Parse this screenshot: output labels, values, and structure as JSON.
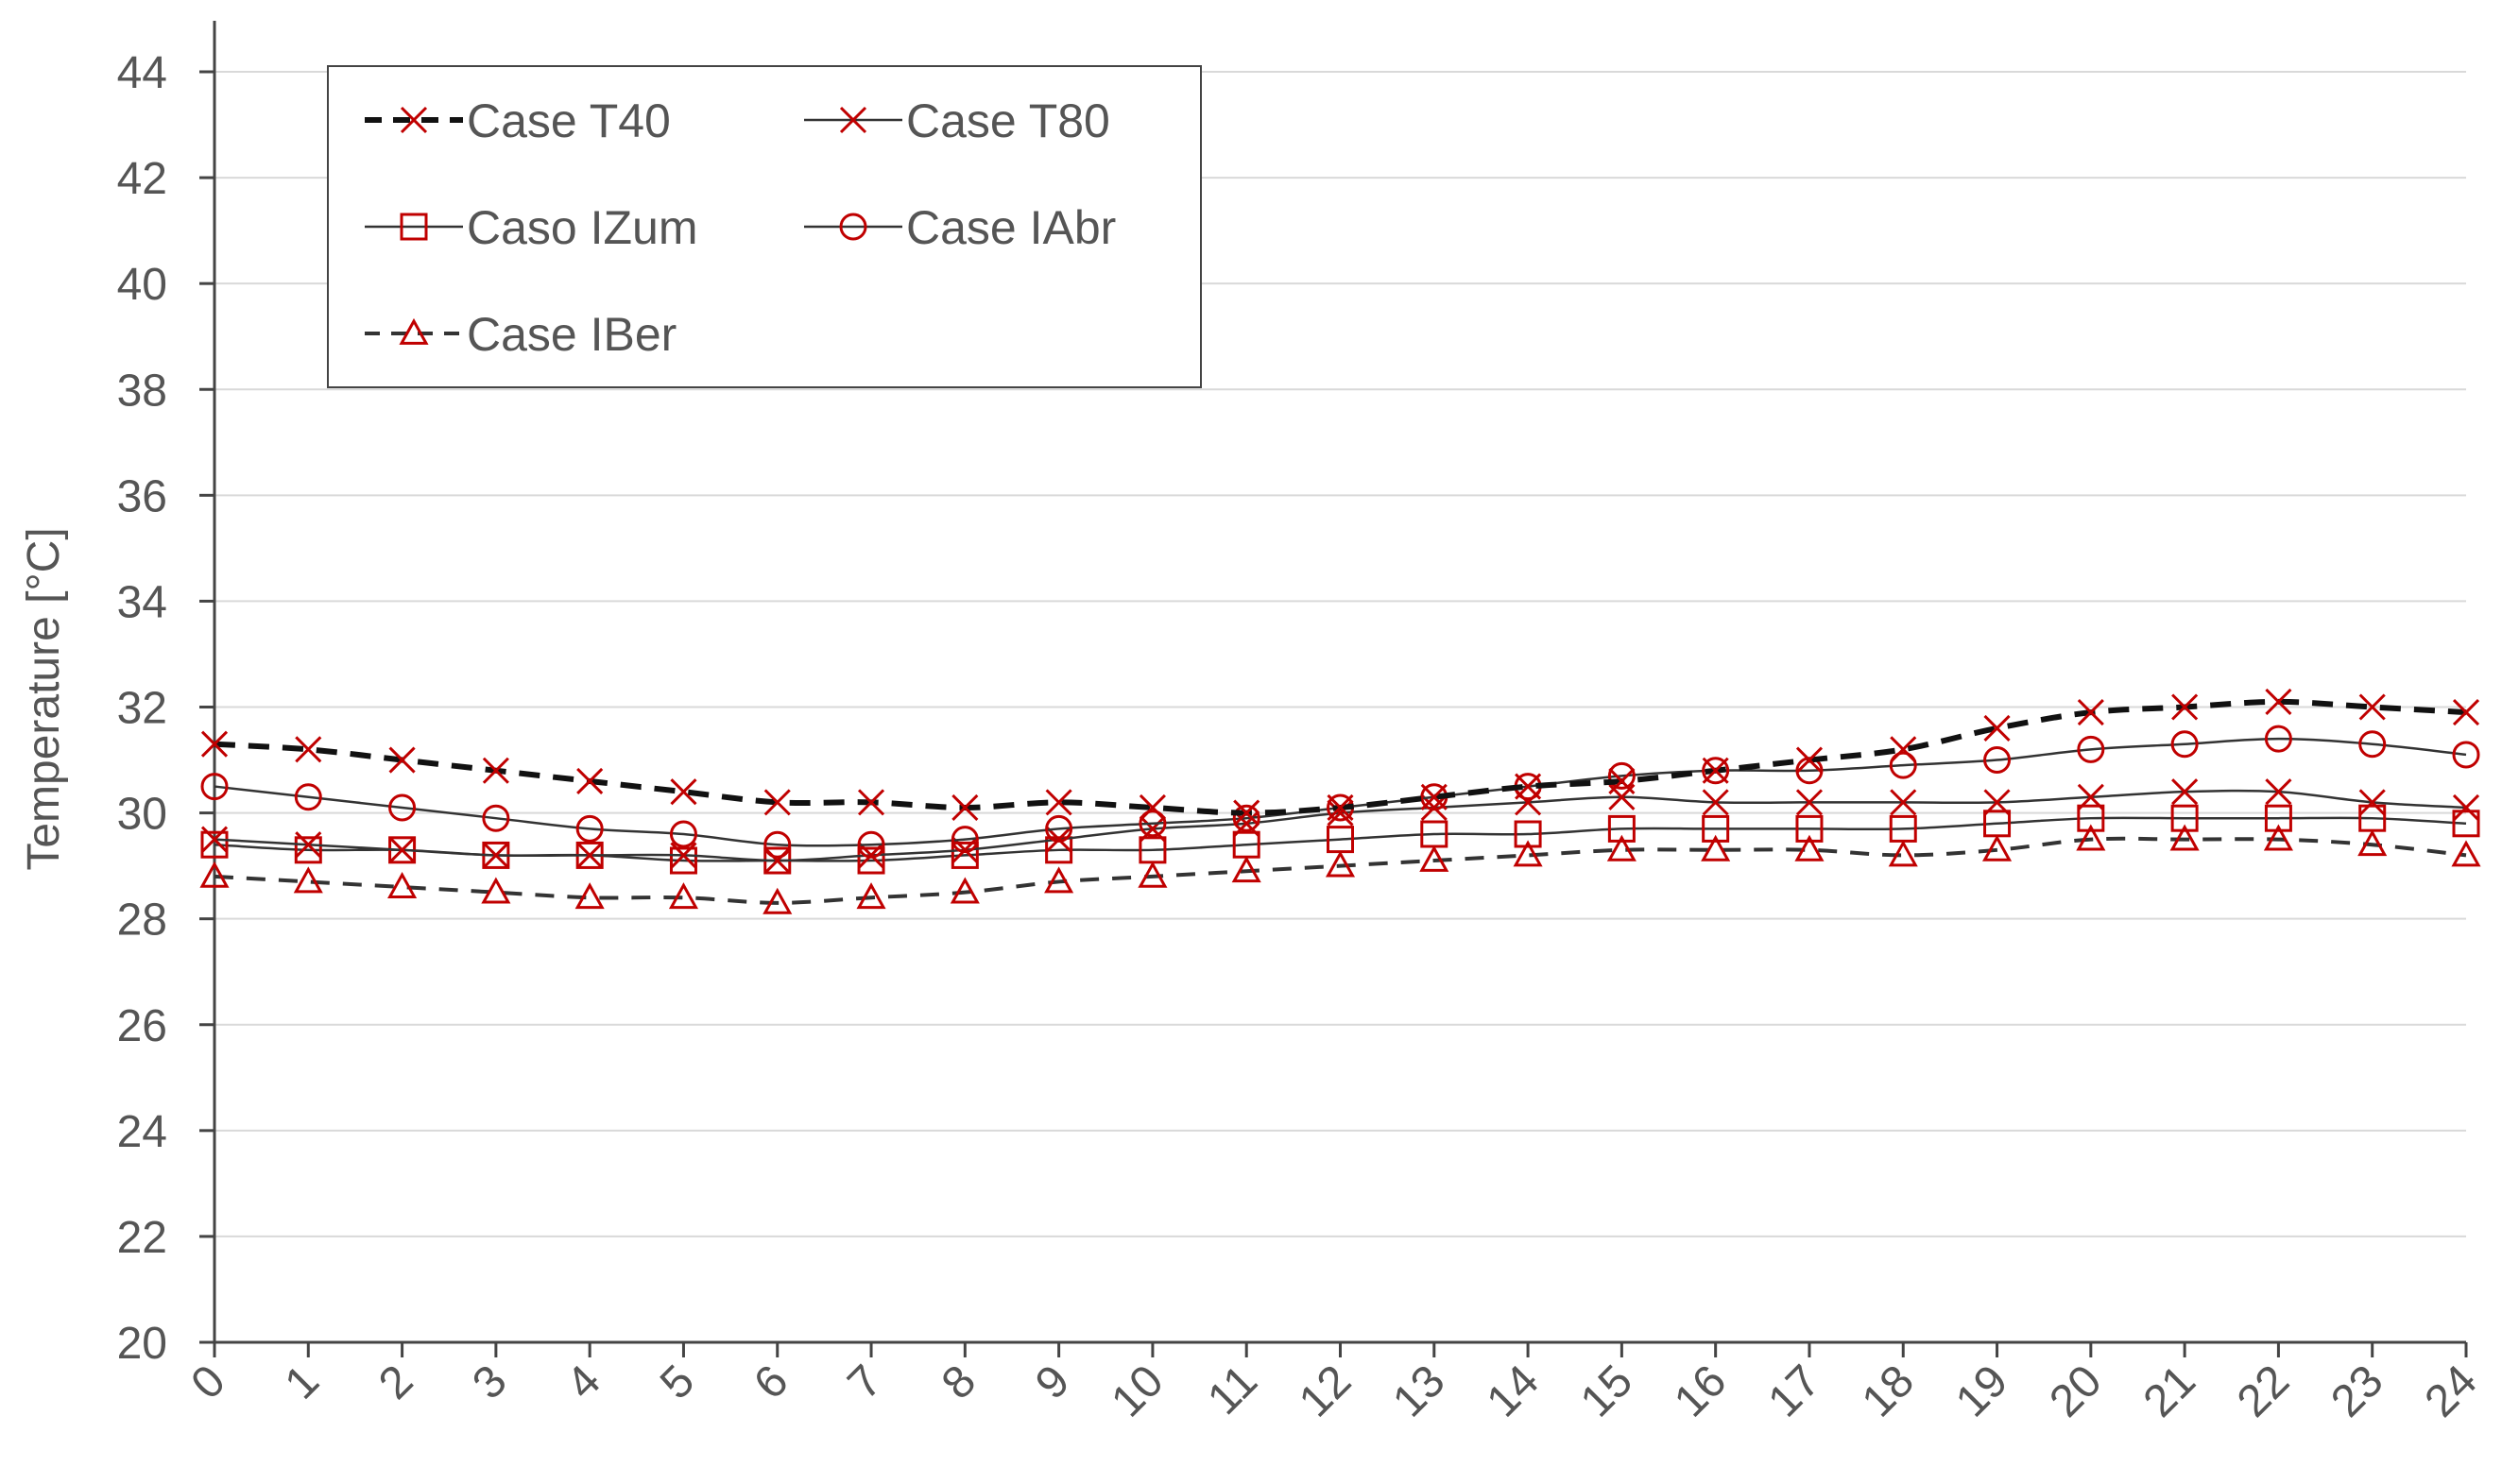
{
  "chart_data": {
    "type": "line",
    "title": "",
    "xlabel": "",
    "ylabel": "Temperature [°C]",
    "ylim": [
      20,
      44
    ],
    "ytick_step": 2,
    "x": [
      0,
      1,
      2,
      3,
      4,
      5,
      6,
      7,
      8,
      9,
      10,
      11,
      12,
      13,
      14,
      15,
      16,
      17,
      18,
      19,
      20,
      21,
      22,
      23,
      24
    ],
    "grid": "horizontal",
    "legend_position": "top-left",
    "colors": {
      "marker": "#c00000",
      "line_black": "#111111",
      "line_dark": "#333333",
      "grid": "#d9d9d9",
      "axis": "#444444"
    },
    "series": [
      {
        "name": "Case T40",
        "marker": "x-cross",
        "line": "dashed-bold",
        "values": [
          31.3,
          31.2,
          31.0,
          30.8,
          30.6,
          30.4,
          30.2,
          30.2,
          30.1,
          30.2,
          30.1,
          30.0,
          30.1,
          30.3,
          30.5,
          30.6,
          30.8,
          31.0,
          31.2,
          31.6,
          31.9,
          32.0,
          32.1,
          32.0,
          31.9
        ]
      },
      {
        "name": "Case T80",
        "marker": "x-cross",
        "line": "solid",
        "values": [
          29.5,
          29.4,
          29.3,
          29.2,
          29.2,
          29.2,
          29.1,
          29.2,
          29.3,
          29.5,
          29.7,
          29.8,
          30.0,
          30.1,
          30.2,
          30.3,
          30.2,
          30.2,
          30.2,
          30.2,
          30.3,
          30.4,
          30.4,
          30.2,
          30.1
        ]
      },
      {
        "name": "Caso IZum",
        "marker": "square",
        "line": "solid",
        "values": [
          29.4,
          29.3,
          29.3,
          29.2,
          29.2,
          29.1,
          29.1,
          29.1,
          29.2,
          29.3,
          29.3,
          29.4,
          29.5,
          29.6,
          29.6,
          29.7,
          29.7,
          29.7,
          29.7,
          29.8,
          29.9,
          29.9,
          29.9,
          29.9,
          29.8
        ]
      },
      {
        "name": "Case IAbr",
        "marker": "circle",
        "line": "solid",
        "values": [
          30.5,
          30.3,
          30.1,
          29.9,
          29.7,
          29.6,
          29.4,
          29.4,
          29.5,
          29.7,
          29.8,
          29.9,
          30.1,
          30.3,
          30.5,
          30.7,
          30.8,
          30.8,
          30.9,
          31.0,
          31.2,
          31.3,
          31.4,
          31.3,
          31.1
        ]
      },
      {
        "name": "Case IBer",
        "marker": "triangle",
        "line": "dashed",
        "values": [
          28.8,
          28.7,
          28.6,
          28.5,
          28.4,
          28.4,
          28.3,
          28.4,
          28.5,
          28.7,
          28.8,
          28.9,
          29.0,
          29.1,
          29.2,
          29.3,
          29.3,
          29.3,
          29.2,
          29.3,
          29.5,
          29.5,
          29.5,
          29.4,
          29.2
        ]
      }
    ]
  }
}
